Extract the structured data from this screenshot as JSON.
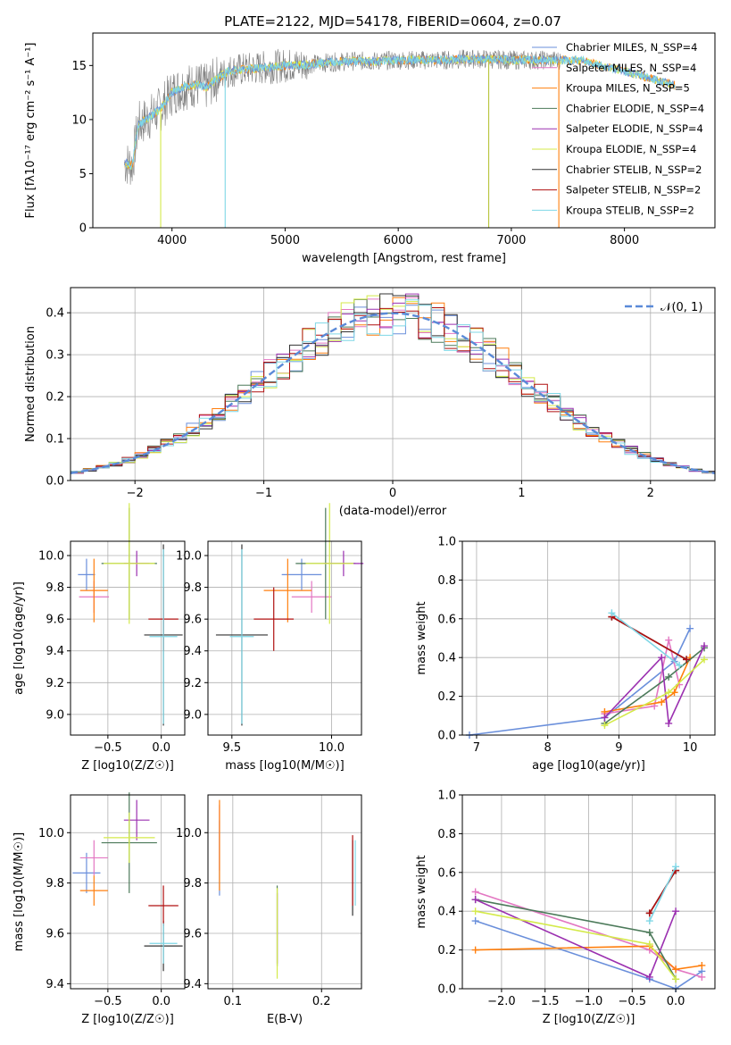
{
  "title": "PLATE=2122, MJD=54178, FIBERID=0604, z=0.07",
  "colors": [
    "#6a8fdb",
    "#e377c2",
    "#ff7f0e",
    "#4c7a5a",
    "#9b30b0",
    "#d4ea4a",
    "#333333",
    "#b01010",
    "#7fd7e6"
  ],
  "chart_data": [
    {
      "type": "line",
      "name": "spectrum",
      "xlabel": "wavelength [Angstrom, rest frame]",
      "ylabel": "Flux [fλ10⁻¹⁷ erg cm⁻² s⁻¹ A⁻¹]",
      "xlim": [
        3300,
        8800
      ],
      "ylim": [
        0,
        18
      ],
      "xticks": [
        "4000",
        "5000",
        "6000",
        "7000",
        "8000"
      ],
      "yticks": [
        "0",
        "5",
        "10",
        "15"
      ],
      "legend": [
        "Chabrier MILES, N_SSP=4",
        "Salpeter MILES, N_SSP=4",
        "Kroupa MILES, N_SSP=5",
        "Chabrier ELODIE, N_SSP=4",
        "Salpeter ELODIE, N_SSP=4",
        "Kroupa ELODIE, N_SSP=4",
        "Chabrier STELIB, N_SSP=2",
        "Salpeter STELIB, N_SSP=2",
        "Kroupa STELIB, N_SSP=2"
      ],
      "legend_position": "lower-right",
      "model_continuum": {
        "x": [
          3580,
          3650,
          3700,
          3800,
          3900,
          4000,
          4100,
          4200,
          4300,
          4400,
          4500,
          4600,
          4700,
          4800,
          4900,
          5000,
          5200,
          5400,
          5600,
          5800,
          6000,
          6200,
          6400,
          6600,
          6800,
          7000,
          7200,
          7400,
          7600,
          8000,
          8500
        ],
        "y": [
          6.0,
          5.8,
          9.5,
          10.2,
          11.0,
          12.5,
          13.0,
          13.2,
          13.0,
          13.8,
          14.5,
          14.6,
          14.7,
          14.8,
          14.9,
          15.0,
          15.1,
          15.3,
          15.4,
          15.4,
          15.5,
          15.5,
          15.5,
          15.6,
          15.6,
          15.5,
          15.5,
          15.5,
          15.5,
          14.5,
          13.0
        ]
      }
    },
    {
      "type": "step",
      "name": "residual_histogram",
      "xlabel": "(data-model)/error",
      "ylabel": "Normed distribution",
      "xlim": [
        -2.5,
        2.5
      ],
      "ylim": [
        0,
        0.46
      ],
      "xticks": [
        "−2",
        "−1",
        "0",
        "1",
        "2"
      ],
      "yticks": [
        "0.0",
        "0.1",
        "0.2",
        "0.3",
        "0.4"
      ],
      "legend": [
        "𝒩(0, 1)"
      ],
      "legend_position": "upper-right",
      "bin_width": 0.1,
      "grid": true
    },
    {
      "type": "scatter",
      "name": "age_vs_Z",
      "xlabel": "Z [log10(Z/Z☉)]",
      "ylabel": "age  [log10(age/yr)]",
      "xlim": [
        -0.85,
        0.22
      ],
      "ylim": [
        8.87,
        10.09
      ],
      "xticks": [
        "−0.5",
        "0.0"
      ],
      "yticks": [
        "9.0",
        "9.2",
        "9.4",
        "9.6",
        "9.8",
        "10.0"
      ],
      "points": [
        {
          "x": -0.7,
          "y": 9.88,
          "xerr": 0.08,
          "yerr": 0.1
        },
        {
          "x": -0.63,
          "y": 9.74,
          "xerr": 0.14,
          "yerr": 0.1
        },
        {
          "x": -0.63,
          "y": 9.78,
          "xerr": 0.13,
          "yerr": 0.2
        },
        {
          "x": -0.3,
          "y": 9.95,
          "xerr": 0.26,
          "yerr": 0.35
        },
        {
          "x": -0.23,
          "y": 9.95,
          "xerr": 0.12,
          "yerr": 0.08
        },
        {
          "x": -0.3,
          "y": 9.95,
          "xerr": 0.24,
          "yerr": 0.38
        },
        {
          "x": 0.02,
          "y": 9.5,
          "xerr": 0.18,
          "yerr": 0.57
        },
        {
          "x": 0.02,
          "y": 9.6,
          "xerr": 0.14,
          "yerr": 0.2
        },
        {
          "x": 0.02,
          "y": 9.49,
          "xerr": 0.13,
          "yerr": 0.55
        }
      ]
    },
    {
      "type": "scatter",
      "name": "age_vs_mass",
      "xlabel": "mass [log10(M/M☉)]",
      "ylabel": "",
      "xlim": [
        9.38,
        10.15
      ],
      "ylim": [
        8.87,
        10.09
      ],
      "xticks": [
        "9.5",
        "10.0"
      ],
      "yticks": [
        "9.0",
        "9.2",
        "9.4",
        "9.6",
        "9.8",
        "10.0"
      ],
      "points": [
        {
          "x": 9.85,
          "y": 9.88,
          "xerr": 0.1,
          "yerr": 0.1
        },
        {
          "x": 9.9,
          "y": 9.74,
          "xerr": 0.1,
          "yerr": 0.1
        },
        {
          "x": 9.78,
          "y": 9.78,
          "xerr": 0.12,
          "yerr": 0.2
        },
        {
          "x": 9.97,
          "y": 9.95,
          "xerr": 0.15,
          "yerr": 0.35
        },
        {
          "x": 10.06,
          "y": 9.95,
          "xerr": 0.1,
          "yerr": 0.08
        },
        {
          "x": 9.99,
          "y": 9.95,
          "xerr": 0.12,
          "yerr": 0.38
        },
        {
          "x": 9.55,
          "y": 9.5,
          "xerr": 0.13,
          "yerr": 0.57
        },
        {
          "x": 9.71,
          "y": 9.6,
          "xerr": 0.1,
          "yerr": 0.2
        },
        {
          "x": 9.55,
          "y": 9.49,
          "xerr": 0.06,
          "yerr": 0.55
        }
      ]
    },
    {
      "type": "line",
      "name": "mass_weight_vs_age",
      "xlabel": "age  [log10(age/yr)]",
      "ylabel": "mass weight",
      "xlim": [
        6.8,
        10.35
      ],
      "ylim": [
        0,
        1.0
      ],
      "xticks": [
        "7",
        "8",
        "9",
        "10"
      ],
      "yticks": [
        "0.0",
        "0.2",
        "0.4",
        "0.6",
        "0.8",
        "1.0"
      ],
      "series": [
        {
          "x": [
            6.9,
            8.8,
            9.78,
            10.0
          ],
          "y": [
            0.0,
            0.09,
            0.38,
            0.55
          ]
        },
        {
          "x": [
            8.8,
            9.5,
            9.7,
            9.85
          ],
          "y": [
            0.11,
            0.15,
            0.49,
            0.26
          ]
        },
        {
          "x": [
            8.8,
            9.6,
            9.78,
            10.0
          ],
          "y": [
            0.12,
            0.17,
            0.22,
            0.4
          ]
        },
        {
          "x": [
            8.8,
            9.7,
            10.2
          ],
          "y": [
            0.06,
            0.3,
            0.45
          ]
        },
        {
          "x": [
            8.8,
            9.6,
            9.7,
            10.2
          ],
          "y": [
            0.09,
            0.4,
            0.06,
            0.46
          ]
        },
        {
          "x": [
            8.8,
            9.7,
            10.2
          ],
          "y": [
            0.05,
            0.22,
            0.39
          ]
        },
        {
          "x": [
            8.9,
            9.95
          ],
          "y": [
            0.61,
            0.39
          ]
        },
        {
          "x": [
            8.9,
            9.95
          ],
          "y": [
            0.61,
            0.39
          ]
        },
        {
          "x": [
            8.9,
            9.85
          ],
          "y": [
            0.63,
            0.36
          ]
        }
      ]
    },
    {
      "type": "scatter",
      "name": "mass_vs_Z",
      "xlabel": "Z [log10(Z/Z☉)]",
      "ylabel": "mass [log10(M/M☉)]",
      "xlim": [
        -0.85,
        0.22
      ],
      "ylim": [
        9.38,
        10.15
      ],
      "xticks": [
        "−0.5",
        "0.0"
      ],
      "yticks": [
        "9.4",
        "9.6",
        "9.8",
        "10.0"
      ],
      "points": [
        {
          "x": -0.7,
          "y": 9.84,
          "xerr": 0.13,
          "yerr": 0.08
        },
        {
          "x": -0.63,
          "y": 9.9,
          "xerr": 0.13,
          "yerr": 0.07
        },
        {
          "x": -0.63,
          "y": 9.77,
          "xerr": 0.13,
          "yerr": 0.06
        },
        {
          "x": -0.3,
          "y": 9.96,
          "xerr": 0.26,
          "yerr": 0.2
        },
        {
          "x": -0.23,
          "y": 10.05,
          "xerr": 0.12,
          "yerr": 0.08
        },
        {
          "x": -0.3,
          "y": 9.98,
          "xerr": 0.24,
          "yerr": 0.1
        },
        {
          "x": 0.02,
          "y": 9.55,
          "xerr": 0.18,
          "yerr": 0.1
        },
        {
          "x": 0.02,
          "y": 9.71,
          "xerr": 0.14,
          "yerr": 0.08
        },
        {
          "x": 0.02,
          "y": 9.56,
          "xerr": 0.13,
          "yerr": 0.08
        }
      ]
    },
    {
      "type": "scatter",
      "name": "mass_vs_ebv",
      "xlabel": "E(B-V)",
      "ylabel": "",
      "xlim": [
        0.072,
        0.245
      ],
      "ylim": [
        9.38,
        10.15
      ],
      "xticks": [
        "0.1",
        "0.2"
      ],
      "yticks": [
        "9.4",
        "9.6",
        "9.8",
        "10.0"
      ],
      "points": [
        {
          "x": 0.085,
          "y": 9.9,
          "yerr": 0.15
        },
        {
          "x": 0.085,
          "y": 9.98,
          "yerr": 0.13
        },
        {
          "x": 0.085,
          "y": 9.95,
          "yerr": 0.18
        },
        {
          "x": 0.15,
          "y": 9.63,
          "yerr": 0.16
        },
        {
          "x": 0.15,
          "y": 9.62,
          "yerr": 0.14
        },
        {
          "x": 0.15,
          "y": 9.6,
          "yerr": 0.18
        },
        {
          "x": 0.235,
          "y": 9.82,
          "yerr": 0.15
        },
        {
          "x": 0.235,
          "y": 9.85,
          "yerr": 0.14
        },
        {
          "x": 0.238,
          "y": 9.84,
          "yerr": 0.13
        }
      ]
    },
    {
      "type": "line",
      "name": "mass_weight_vs_Z",
      "xlabel": "Z [log10(Z/Z☉)]",
      "ylabel": "mass weight",
      "xlim": [
        -2.45,
        0.45
      ],
      "ylim": [
        0,
        1.0
      ],
      "xticks": [
        "−2.0",
        "−1.5",
        "−1.0",
        "−0.5",
        "0.0"
      ],
      "yticks": [
        "0.0",
        "0.2",
        "0.4",
        "0.6",
        "0.8",
        "1.0"
      ],
      "series": [
        {
          "x": [
            -2.3,
            -0.3,
            0.0,
            0.3
          ],
          "y": [
            0.35,
            0.05,
            0.0,
            0.09
          ]
        },
        {
          "x": [
            -2.3,
            -0.3,
            0.0,
            0.3
          ],
          "y": [
            0.5,
            0.2,
            0.1,
            0.06
          ]
        },
        {
          "x": [
            -2.3,
            -0.3,
            0.0,
            0.3
          ],
          "y": [
            0.2,
            0.22,
            0.1,
            0.12
          ]
        },
        {
          "x": [
            -2.3,
            -0.3,
            0.0
          ],
          "y": [
            0.46,
            0.29,
            0.05
          ]
        },
        {
          "x": [
            -2.3,
            -0.3,
            0.0
          ],
          "y": [
            0.46,
            0.06,
            0.4
          ]
        },
        {
          "x": [
            -2.3,
            -0.3,
            0.0
          ],
          "y": [
            0.4,
            0.23,
            0.05
          ]
        },
        {
          "x": [
            -0.3,
            0.0
          ],
          "y": [
            0.39,
            0.61
          ]
        },
        {
          "x": [
            -0.3,
            0.0
          ],
          "y": [
            0.39,
            0.61
          ]
        },
        {
          "x": [
            -0.3,
            0.0
          ],
          "y": [
            0.35,
            0.63
          ]
        }
      ]
    }
  ]
}
